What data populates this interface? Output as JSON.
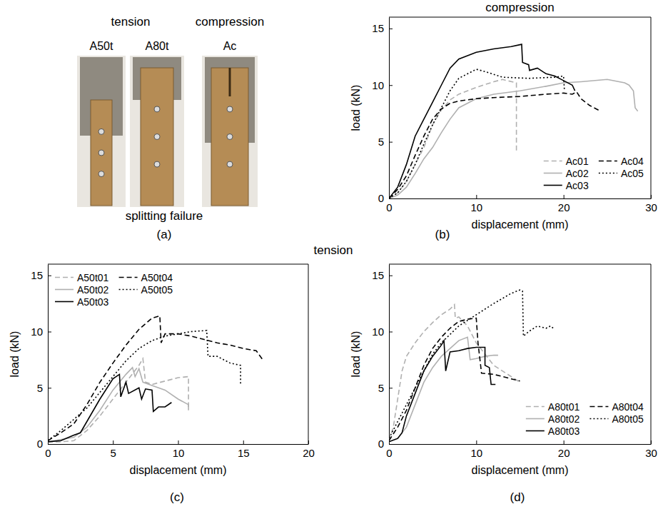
{
  "photo_panel": {
    "headings": [
      "tension",
      "compression"
    ],
    "specimens": [
      "A50t",
      "A80t",
      "Ac"
    ],
    "caption": "splitting failure",
    "label": "(a)"
  },
  "shared_title": "tension",
  "chart_data": [
    {
      "type": "line",
      "title": "compression",
      "annotations": [
        "(b)"
      ],
      "x_label": "displacement (mm)",
      "y_label": "load (kN)",
      "xlim": [
        0,
        30
      ],
      "ylim": [
        0,
        16
      ],
      "xticks": [
        0,
        10,
        20,
        30
      ],
      "yticks": [
        0,
        5,
        10,
        15
      ],
      "grid": false,
      "legend": "bottom-right",
      "series": [
        {
          "name": "Ac01",
          "color": "#b0b0b0",
          "line_style": "dashed",
          "x": [
            0,
            1,
            2,
            3,
            4,
            5,
            6,
            7,
            8,
            10,
            12,
            13,
            14.6,
            14.6
          ],
          "values": [
            0,
            0.5,
            1.5,
            3,
            4.5,
            6.5,
            7.8,
            8.7,
            9.2,
            9.8,
            10.3,
            10.5,
            10.2,
            4.2
          ]
        },
        {
          "name": "Ac02",
          "color": "#b0b0b0",
          "line_style": "solid",
          "x": [
            0,
            1,
            2,
            3,
            4,
            5,
            6,
            7,
            8,
            10,
            12,
            15,
            18,
            20,
            22,
            25,
            27,
            27.5,
            28,
            28.2,
            28.5
          ],
          "values": [
            0,
            0.3,
            1,
            2.2,
            3.5,
            4.5,
            5.8,
            7,
            8,
            8.8,
            9.2,
            9.5,
            9.9,
            10.2,
            10.3,
            10.5,
            10.2,
            10,
            9.5,
            8,
            7.7
          ]
        },
        {
          "name": "Ac03",
          "color": "#000000",
          "line_style": "solid",
          "x": [
            0,
            1,
            2,
            3,
            4,
            5,
            6,
            7,
            8,
            10,
            12,
            14,
            15.2,
            15.3,
            16,
            16.1,
            17,
            18,
            19,
            20,
            21,
            21.3
          ],
          "values": [
            0,
            1,
            3,
            5.5,
            7,
            8.5,
            10,
            11.5,
            12.3,
            12.9,
            13.2,
            13.4,
            13.6,
            12,
            11.8,
            11.3,
            11.5,
            11,
            10.8,
            10.4,
            10,
            9.5
          ]
        },
        {
          "name": "Ac04",
          "color": "#000000",
          "line_style": "dashed",
          "x": [
            0,
            1,
            2,
            3,
            4,
            5,
            6,
            7,
            8,
            10,
            12,
            15,
            18,
            20,
            21,
            21.5,
            22,
            23,
            24
          ],
          "values": [
            0,
            0.8,
            2,
            3.8,
            5.5,
            7,
            7.9,
            8.4,
            8.6,
            8.8,
            8.9,
            9,
            9.2,
            9.3,
            9.2,
            9.4,
            8.8,
            8.2,
            7.8
          ]
        },
        {
          "name": "Ac05",
          "color": "#000000",
          "line_style": "dotted",
          "x": [
            0,
            1,
            2,
            3,
            4,
            5,
            6,
            7,
            8,
            10,
            11,
            13,
            16,
            19,
            20,
            20.1
          ],
          "values": [
            0,
            0.5,
            1.5,
            3,
            4.8,
            6.5,
            8,
            9.5,
            10.6,
            11.4,
            11.2,
            10.7,
            10.6,
            10.7,
            10.8,
            9.5
          ]
        }
      ]
    },
    {
      "type": "line",
      "annotations": [
        "(c)"
      ],
      "x_label": "displacement (mm)",
      "y_label": "load (kN)",
      "xlim": [
        0,
        20
      ],
      "ylim": [
        0,
        16
      ],
      "xticks": [
        0,
        5,
        10,
        15,
        20
      ],
      "yticks": [
        0,
        5,
        10,
        15
      ],
      "grid": false,
      "legend": "top-left",
      "series": [
        {
          "name": "A50t01",
          "color": "#b0b0b0",
          "line_style": "dashed",
          "x": [
            0,
            1,
            2,
            3,
            4,
            5,
            6,
            7,
            7.3,
            7.5,
            8,
            9,
            10,
            10.8,
            10.8
          ],
          "values": [
            0.2,
            0.2,
            0.3,
            1.2,
            2.5,
            4,
            5.5,
            7,
            7.6,
            5.5,
            5.3,
            5.6,
            5.9,
            6,
            3.3
          ]
        },
        {
          "name": "A50t02",
          "color": "#b0b0b0",
          "line_style": "solid",
          "x": [
            0,
            2,
            3,
            4,
            5,
            6,
            6.5,
            6.7,
            7,
            7.3,
            8,
            9,
            10,
            10.8,
            10.8
          ],
          "values": [
            0.2,
            0.6,
            1.5,
            3,
            4.8,
            6.2,
            6.8,
            6,
            6.7,
            5.5,
            5.2,
            4.8,
            4,
            3.5,
            3
          ]
        },
        {
          "name": "A50t03",
          "color": "#000000",
          "line_style": "solid",
          "x": [
            0,
            1,
            2,
            2.5,
            3,
            4,
            5,
            5.5,
            5.6,
            6,
            6.2,
            7,
            7.2,
            7.5,
            8,
            8.1,
            8.5,
            9,
            9.5
          ],
          "values": [
            0.2,
            0.3,
            0.8,
            1,
            2,
            4,
            5.8,
            6.2,
            4.2,
            5.5,
            4.5,
            5,
            4,
            4.9,
            4.8,
            2.9,
            3.3,
            3.3,
            3.7
          ]
        },
        {
          "name": "A50t04",
          "color": "#000000",
          "line_style": "dashed",
          "x": [
            0,
            1,
            2,
            3,
            4,
            5,
            6,
            7,
            8,
            8.6,
            8.7,
            9,
            10,
            11,
            12,
            13,
            14,
            15,
            16,
            16.5
          ],
          "values": [
            0.3,
            1,
            1.8,
            3.5,
            5.5,
            7.2,
            8.8,
            10.2,
            11.2,
            11.4,
            9,
            9.8,
            9.8,
            9.6,
            9.3,
            9,
            8.8,
            8.5,
            8.3,
            7.5
          ]
        },
        {
          "name": "A50t05",
          "color": "#000000",
          "line_style": "dotted",
          "x": [
            0,
            1,
            2,
            3,
            4,
            5,
            6,
            7,
            8,
            9,
            10,
            11,
            12.2,
            12.3,
            13,
            14,
            14.8,
            14.8
          ],
          "values": [
            0.3,
            1.2,
            2.2,
            3.2,
            4.6,
            6,
            7.4,
            8.5,
            9.2,
            9.6,
            9.8,
            10,
            10.1,
            7.8,
            7.8,
            7.2,
            7,
            5.2
          ]
        }
      ]
    },
    {
      "type": "line",
      "annotations": [
        "(d)"
      ],
      "x_label": "displacement (mm)",
      "y_label": "load (kN)",
      "xlim": [
        0,
        30
      ],
      "ylim": [
        0,
        16
      ],
      "xticks": [
        0,
        10,
        20,
        30
      ],
      "yticks": [
        0,
        5,
        10,
        15
      ],
      "grid": false,
      "legend": "bottom-right",
      "series": [
        {
          "name": "A80t01",
          "color": "#b0b0b0",
          "line_style": "dashed",
          "x": [
            0,
            0.5,
            1,
            1.5,
            2,
            3,
            4,
            5,
            6,
            7,
            7.5,
            7.6,
            8,
            9,
            10,
            11,
            12,
            13,
            14,
            15
          ],
          "values": [
            0.3,
            1.5,
            4,
            6.5,
            7.8,
            9,
            10,
            10.8,
            11.5,
            12,
            12.4,
            11.2,
            11.3,
            10.5,
            9,
            8,
            7,
            6.5,
            6,
            5.5
          ]
        },
        {
          "name": "A80t02",
          "color": "#b0b0b0",
          "line_style": "solid",
          "x": [
            0,
            1,
            2,
            3,
            4,
            5,
            6,
            7,
            8,
            9,
            9.3,
            10,
            11,
            12,
            12.5
          ],
          "values": [
            0.2,
            0.5,
            1.5,
            3.5,
            5.5,
            6.8,
            7.8,
            8.5,
            9.2,
            9.5,
            7.5,
            7.6,
            7.8,
            7.9,
            7.9
          ]
        },
        {
          "name": "A80t03",
          "color": "#000000",
          "line_style": "solid",
          "x": [
            0,
            1,
            1.5,
            2,
            3,
            4,
            5,
            6,
            6.3,
            6.5,
            7,
            8,
            9,
            10,
            11,
            11,
            11.5,
            11.7,
            12.2
          ],
          "values": [
            0.2,
            0.5,
            1,
            2.5,
            4.5,
            6.5,
            7.8,
            8.8,
            9.2,
            6.5,
            8.2,
            8.3,
            8.5,
            8.6,
            8.6,
            7,
            6.8,
            5.3,
            5.3
          ]
        },
        {
          "name": "A80t04",
          "color": "#000000",
          "line_style": "dashed",
          "x": [
            0,
            1,
            2,
            3,
            4,
            5,
            6,
            7,
            8,
            9,
            10,
            10.2,
            10.5,
            10.6,
            12,
            13,
            14,
            15
          ],
          "values": [
            0.3,
            1.5,
            3,
            5,
            7,
            8.5,
            9.5,
            10.3,
            10.9,
            11.1,
            11.2,
            9,
            7,
            6.3,
            6.2,
            6,
            5.8,
            5.6
          ]
        },
        {
          "name": "A80t05",
          "color": "#000000",
          "line_style": "dotted",
          "x": [
            0,
            1,
            2,
            3,
            4,
            5,
            6,
            8,
            10,
            12,
            14,
            15,
            15.3,
            15.4,
            16,
            17,
            18,
            18.5,
            19
          ],
          "values": [
            0.5,
            2,
            3.5,
            5,
            6.5,
            8,
            9,
            10.5,
            11.5,
            12.5,
            13.4,
            13.7,
            13.6,
            9.6,
            10,
            10.5,
            10.3,
            10.5,
            10.2
          ]
        }
      ]
    }
  ]
}
